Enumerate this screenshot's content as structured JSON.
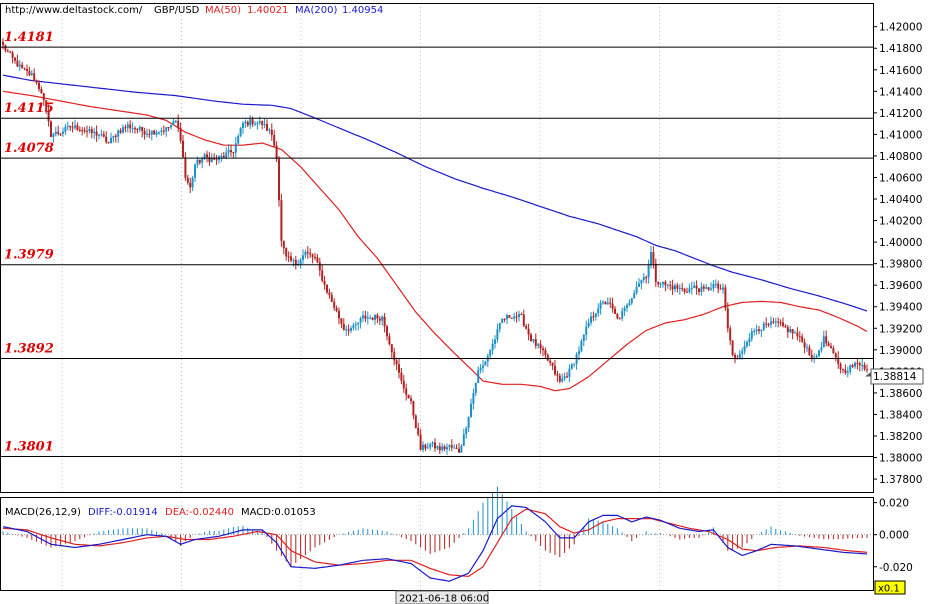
{
  "header": {
    "site": "http://www.deltastock.com/",
    "symbol": "GBP/USD",
    "ma50_label": "MA(50)",
    "ma50_value": "1.40021",
    "ma200_label": "MA(200)",
    "ma200_value": "1.40954"
  },
  "macd_header": {
    "label": "MACD(26,12,9)",
    "diff": "DIFF:-0.01914",
    "dea": "DEA:-0.02440",
    "macd": "MACD:0.01053"
  },
  "footer": {
    "timestamp": "2021-06-18 06:00",
    "zoom": "x0.1"
  },
  "colors": {
    "up": "#1e90c8",
    "down": "#b22222",
    "ma50": "#e02020",
    "ma200": "#1a1acc",
    "level_text": "#dd0000",
    "level_line": "#000000",
    "grid": "#c8c8c8"
  },
  "chart_data": [
    {
      "type": "candlestick",
      "symbol": "GBP/USD",
      "y_ticks": [
        "1.42000",
        "1.41800",
        "1.41600",
        "1.41400",
        "1.41200",
        "1.41000",
        "1.40800",
        "1.40600",
        "1.40400",
        "1.40200",
        "1.40000",
        "1.39800",
        "1.39600",
        "1.39400",
        "1.39200",
        "1.39000",
        "1.38800",
        "1.38600",
        "1.38400",
        "1.38200",
        "1.38000",
        "1.37800"
      ],
      "ylim": [
        1.3768,
        1.4222
      ],
      "last_price": "1.38814",
      "levels": [
        {
          "label": "1.4181",
          "value": 1.4181
        },
        {
          "label": "1.4115",
          "value": 1.4115
        },
        {
          "label": "1.4078",
          "value": 1.4078
        },
        {
          "label": "1.3979",
          "value": 1.3979
        },
        {
          "label": "1.3892",
          "value": 1.3892
        },
        {
          "label": "1.3801",
          "value": 1.3801
        }
      ],
      "close_anchors": [
        [
          0,
          1.4182
        ],
        [
          4,
          1.417
        ],
        [
          8,
          1.416
        ],
        [
          12,
          1.4155
        ],
        [
          16,
          1.414
        ],
        [
          18,
          1.412
        ],
        [
          20,
          1.41
        ],
        [
          24,
          1.4102
        ],
        [
          28,
          1.4107
        ],
        [
          32,
          1.4106
        ],
        [
          36,
          1.4102
        ],
        [
          40,
          1.41
        ],
        [
          44,
          1.4092
        ],
        [
          48,
          1.4103
        ],
        [
          52,
          1.4108
        ],
        [
          56,
          1.4105
        ],
        [
          60,
          1.4102
        ],
        [
          64,
          1.4103
        ],
        [
          68,
          1.4105
        ],
        [
          72,
          1.4112
        ],
        [
          74,
          1.4097
        ],
        [
          76,
          1.406
        ],
        [
          78,
          1.405
        ],
        [
          80,
          1.4072
        ],
        [
          84,
          1.4079
        ],
        [
          88,
          1.4076
        ],
        [
          92,
          1.408
        ],
        [
          96,
          1.4085
        ],
        [
          100,
          1.411
        ],
        [
          104,
          1.4112
        ],
        [
          108,
          1.411
        ],
        [
          112,
          1.41
        ],
        [
          114,
          1.408
        ],
        [
          116,
          1.4
        ],
        [
          118,
          1.3985
        ],
        [
          122,
          1.398
        ],
        [
          126,
          1.399
        ],
        [
          130,
          1.3985
        ],
        [
          134,
          1.396
        ],
        [
          138,
          1.394
        ],
        [
          142,
          1.392
        ],
        [
          146,
          1.392
        ],
        [
          150,
          1.393
        ],
        [
          154,
          1.393
        ],
        [
          158,
          1.393
        ],
        [
          162,
          1.39
        ],
        [
          166,
          1.387
        ],
        [
          170,
          1.385
        ],
        [
          172,
          1.383
        ],
        [
          174,
          1.3808
        ],
        [
          178,
          1.3812
        ],
        [
          182,
          1.3808
        ],
        [
          186,
          1.381
        ],
        [
          190,
          1.3806
        ],
        [
          192,
          1.382
        ],
        [
          194,
          1.384
        ],
        [
          196,
          1.386
        ],
        [
          198,
          1.388
        ],
        [
          200,
          1.3885
        ],
        [
          204,
          1.3905
        ],
        [
          208,
          1.3928
        ],
        [
          212,
          1.3932
        ],
        [
          216,
          1.393
        ],
        [
          220,
          1.391
        ],
        [
          224,
          1.39
        ],
        [
          228,
          1.3887
        ],
        [
          232,
          1.387
        ],
        [
          236,
          1.388
        ],
        [
          240,
          1.39
        ],
        [
          244,
          1.3925
        ],
        [
          248,
          1.394
        ],
        [
          252,
          1.3945
        ],
        [
          256,
          1.3928
        ],
        [
          260,
          1.394
        ],
        [
          264,
          1.396
        ],
        [
          268,
          1.397
        ],
        [
          270,
          1.399
        ],
        [
          272,
          1.3965
        ],
        [
          276,
          1.396
        ],
        [
          280,
          1.3958
        ],
        [
          284,
          1.3955
        ],
        [
          288,
          1.3958
        ],
        [
          292,
          1.3955
        ],
        [
          296,
          1.396
        ],
        [
          300,
          1.3955
        ],
        [
          302,
          1.392
        ],
        [
          304,
          1.3895
        ],
        [
          306,
          1.389
        ],
        [
          310,
          1.391
        ],
        [
          314,
          1.392
        ],
        [
          318,
          1.3922
        ],
        [
          322,
          1.3925
        ],
        [
          326,
          1.392
        ],
        [
          330,
          1.3915
        ],
        [
          334,
          1.3905
        ],
        [
          338,
          1.389
        ],
        [
          342,
          1.391
        ],
        [
          346,
          1.3895
        ],
        [
          350,
          1.388
        ],
        [
          354,
          1.3885
        ],
        [
          358,
          1.3888
        ],
        [
          360,
          1.3881
        ]
      ],
      "ma50": [
        [
          0,
          1.414
        ],
        [
          12,
          1.4136
        ],
        [
          24,
          1.4131
        ],
        [
          36,
          1.4126
        ],
        [
          48,
          1.4122
        ],
        [
          60,
          1.4118
        ],
        [
          68,
          1.4113
        ],
        [
          76,
          1.4102
        ],
        [
          84,
          1.4095
        ],
        [
          92,
          1.409
        ],
        [
          100,
          1.409
        ],
        [
          108,
          1.4092
        ],
        [
          116,
          1.4086
        ],
        [
          124,
          1.407
        ],
        [
          132,
          1.405
        ],
        [
          140,
          1.403
        ],
        [
          148,
          1.4005
        ],
        [
          156,
          1.3985
        ],
        [
          164,
          1.396
        ],
        [
          172,
          1.3935
        ],
        [
          180,
          1.3915
        ],
        [
          188,
          1.3897
        ],
        [
          196,
          1.388
        ],
        [
          200,
          1.3871
        ],
        [
          208,
          1.3868
        ],
        [
          216,
          1.3868
        ],
        [
          224,
          1.3866
        ],
        [
          230,
          1.3862
        ],
        [
          236,
          1.3864
        ],
        [
          244,
          1.3875
        ],
        [
          252,
          1.389
        ],
        [
          260,
          1.3905
        ],
        [
          268,
          1.3918
        ],
        [
          276,
          1.3925
        ],
        [
          284,
          1.3928
        ],
        [
          292,
          1.3933
        ],
        [
          300,
          1.394
        ],
        [
          308,
          1.3944
        ],
        [
          316,
          1.3945
        ],
        [
          324,
          1.3944
        ],
        [
          332,
          1.394
        ],
        [
          340,
          1.3937
        ],
        [
          348,
          1.393
        ],
        [
          356,
          1.3922
        ],
        [
          360,
          1.3917
        ]
      ],
      "ma200": [
        [
          0,
          1.4155
        ],
        [
          12,
          1.415
        ],
        [
          24,
          1.4147
        ],
        [
          40,
          1.4143
        ],
        [
          56,
          1.4139
        ],
        [
          72,
          1.4136
        ],
        [
          88,
          1.4131
        ],
        [
          100,
          1.4128
        ],
        [
          112,
          1.4127
        ],
        [
          120,
          1.4124
        ],
        [
          128,
          1.4117
        ],
        [
          140,
          1.4106
        ],
        [
          152,
          1.4095
        ],
        [
          164,
          1.4083
        ],
        [
          176,
          1.407
        ],
        [
          188,
          1.4059
        ],
        [
          200,
          1.405
        ],
        [
          212,
          1.4042
        ],
        [
          224,
          1.4033
        ],
        [
          236,
          1.4024
        ],
        [
          248,
          1.4017
        ],
        [
          256,
          1.4011
        ],
        [
          264,
          1.4005
        ],
        [
          272,
          1.3997
        ],
        [
          280,
          1.3992
        ],
        [
          288,
          1.3985
        ],
        [
          296,
          1.3978
        ],
        [
          304,
          1.3972
        ],
        [
          316,
          1.3965
        ],
        [
          328,
          1.3957
        ],
        [
          340,
          1.395
        ],
        [
          352,
          1.3942
        ],
        [
          360,
          1.3936
        ]
      ]
    },
    {
      "type": "macd",
      "label": "MACD(26,12,9)",
      "y_ticks": [
        "0.020",
        "0.000",
        "-0.020"
      ],
      "ylim": [
        -0.0345,
        0.0235
      ],
      "diff_anchors": [
        [
          0,
          0.005
        ],
        [
          10,
          0.002
        ],
        [
          20,
          -0.006
        ],
        [
          30,
          -0.008
        ],
        [
          40,
          -0.006
        ],
        [
          50,
          -0.003
        ],
        [
          60,
          0.0
        ],
        [
          68,
          -0.001
        ],
        [
          74,
          -0.006
        ],
        [
          80,
          -0.003
        ],
        [
          90,
          -0.001
        ],
        [
          100,
          0.003
        ],
        [
          108,
          0.003
        ],
        [
          114,
          -0.005
        ],
        [
          120,
          -0.02
        ],
        [
          130,
          -0.021
        ],
        [
          140,
          -0.019
        ],
        [
          150,
          -0.016
        ],
        [
          160,
          -0.015
        ],
        [
          170,
          -0.018
        ],
        [
          178,
          -0.027
        ],
        [
          186,
          -0.029
        ],
        [
          194,
          -0.024
        ],
        [
          200,
          -0.01
        ],
        [
          206,
          0.01
        ],
        [
          212,
          0.018
        ],
        [
          218,
          0.017
        ],
        [
          226,
          0.008
        ],
        [
          232,
          -0.002
        ],
        [
          238,
          -0.002
        ],
        [
          244,
          0.008
        ],
        [
          250,
          0.012
        ],
        [
          256,
          0.012
        ],
        [
          262,
          0.008
        ],
        [
          268,
          0.011
        ],
        [
          274,
          0.009
        ],
        [
          282,
          0.004
        ],
        [
          290,
          0.002
        ],
        [
          296,
          0.003
        ],
        [
          302,
          -0.008
        ],
        [
          308,
          -0.013
        ],
        [
          314,
          -0.01
        ],
        [
          320,
          -0.006
        ],
        [
          330,
          -0.007
        ],
        [
          340,
          -0.009
        ],
        [
          350,
          -0.011
        ],
        [
          360,
          -0.012
        ]
      ],
      "dea_anchors": [
        [
          0,
          0.004
        ],
        [
          10,
          0.003
        ],
        [
          20,
          -0.002
        ],
        [
          30,
          -0.006
        ],
        [
          40,
          -0.007
        ],
        [
          50,
          -0.005
        ],
        [
          60,
          -0.002
        ],
        [
          68,
          -0.001
        ],
        [
          76,
          -0.003
        ],
        [
          86,
          -0.003
        ],
        [
          96,
          -0.001
        ],
        [
          106,
          0.002
        ],
        [
          114,
          0.0
        ],
        [
          120,
          -0.01
        ],
        [
          130,
          -0.017
        ],
        [
          140,
          -0.019
        ],
        [
          150,
          -0.018
        ],
        [
          160,
          -0.016
        ],
        [
          170,
          -0.016
        ],
        [
          178,
          -0.021
        ],
        [
          186,
          -0.025
        ],
        [
          194,
          -0.026
        ],
        [
          200,
          -0.02
        ],
        [
          206,
          -0.005
        ],
        [
          212,
          0.01
        ],
        [
          218,
          0.016
        ],
        [
          226,
          0.013
        ],
        [
          232,
          0.005
        ],
        [
          238,
          0.001
        ],
        [
          244,
          0.003
        ],
        [
          250,
          0.008
        ],
        [
          256,
          0.01
        ],
        [
          262,
          0.01
        ],
        [
          270,
          0.01
        ],
        [
          278,
          0.007
        ],
        [
          286,
          0.004
        ],
        [
          294,
          0.002
        ],
        [
          302,
          -0.003
        ],
        [
          308,
          -0.009
        ],
        [
          314,
          -0.01
        ],
        [
          322,
          -0.008
        ],
        [
          332,
          -0.007
        ],
        [
          342,
          -0.008
        ],
        [
          352,
          -0.01
        ],
        [
          360,
          -0.011
        ]
      ]
    }
  ]
}
